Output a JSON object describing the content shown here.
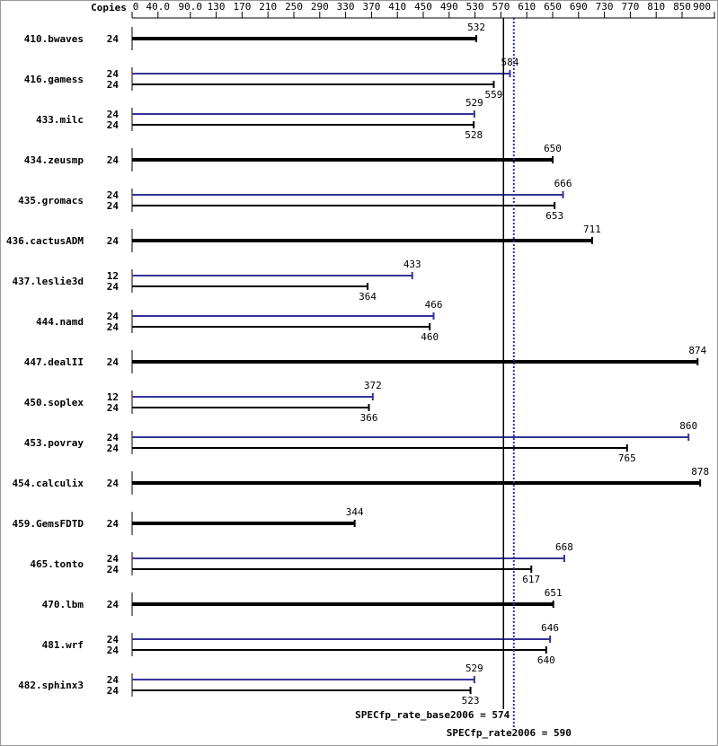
{
  "chart_data": {
    "type": "bar",
    "orientation": "horizontal",
    "copies_title": "Copies",
    "categories": [
      "410.bwaves",
      "416.gamess",
      "433.milc",
      "434.zeusmp",
      "435.gromacs",
      "436.cactusADM",
      "437.leslie3d",
      "444.namd",
      "447.dealII",
      "450.soplex",
      "453.povray",
      "454.calculix",
      "459.GemsFDTD",
      "465.tonto",
      "470.lbm",
      "481.wrf",
      "482.sphinx3"
    ],
    "series": [
      {
        "color": "#000000",
        "values": [
          532,
          559,
          528,
          650,
          653,
          711,
          364,
          460,
          874,
          366,
          765,
          878,
          344,
          617,
          651,
          640,
          523
        ],
        "copies": [
          24,
          24,
          24,
          24,
          24,
          24,
          24,
          24,
          24,
          24,
          24,
          24,
          24,
          24,
          24,
          24,
          24
        ]
      },
      {
        "color": "#333399",
        "values": [
          null,
          584,
          529,
          null,
          666,
          null,
          433,
          466,
          null,
          372,
          860,
          null,
          null,
          668,
          null,
          646,
          529
        ],
        "copies": [
          null,
          24,
          24,
          null,
          24,
          null,
          12,
          24,
          null,
          12,
          24,
          null,
          null,
          24,
          null,
          24,
          24
        ]
      }
    ],
    "xlim": [
      0,
      900
    ],
    "xticks": [
      0,
      {
        "value": 40,
        "label": "40.0"
      },
      {
        "value": 90,
        "label": "90.0"
      },
      130,
      170,
      210,
      250,
      290,
      330,
      370,
      410,
      450,
      490,
      530,
      570,
      610,
      650,
      690,
      730,
      770,
      810,
      850,
      900
    ],
    "reference_lines": [
      {
        "value": 574,
        "label": "SPECfp_rate_base2006 = 574",
        "color": "#000000",
        "style": "solid"
      },
      {
        "value": 590,
        "label": "SPECfp_rate2006 = 590",
        "color": "#333399",
        "style": "dotted"
      }
    ]
  }
}
